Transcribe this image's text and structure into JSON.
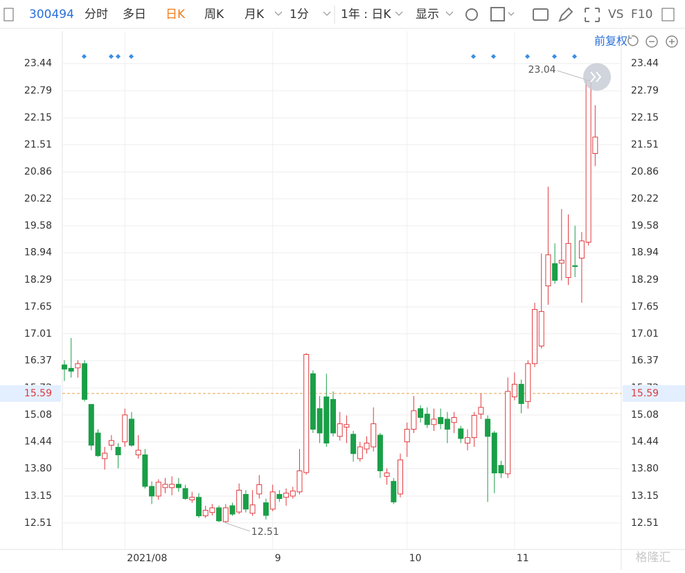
{
  "toolbar": {
    "code": "300494",
    "tabs": [
      "分时",
      "多日",
      "日K",
      "周K",
      "月K",
      "1分",
      "1年 : 日K",
      "显示"
    ],
    "tools": [
      "VS",
      "F10"
    ],
    "adjust": "前复权"
  },
  "watermark": "格隆汇",
  "chart_data": {
    "type": "candlestick",
    "categories": [
      null,
      null,
      null,
      null,
      null,
      null,
      null,
      null,
      null,
      "2021/08",
      null,
      null,
      null,
      null,
      null,
      null,
      null,
      null,
      null,
      null,
      null,
      null,
      null,
      null,
      null,
      null,
      null,
      null,
      null,
      null,
      null,
      "9",
      null,
      null,
      null,
      null,
      null,
      null,
      null,
      null,
      null,
      null,
      null,
      null,
      null,
      null,
      null,
      null,
      null,
      null,
      null,
      "10",
      null,
      null,
      null,
      null,
      null,
      null,
      null,
      null,
      null,
      null,
      null,
      null,
      null,
      null,
      null,
      "11",
      null,
      null,
      null,
      null,
      null,
      null,
      null,
      null,
      null,
      null,
      null,
      null
    ],
    "open": [
      16.27,
      16.19,
      16.2,
      16.3,
      15.33,
      14.65,
      14.04,
      14.36,
      14.31,
      14.44,
      14.98,
      14.13,
      14.13,
      13.38,
      13.15,
      13.35,
      13.35,
      13.43,
      13.33,
      13.06,
      13.12,
      12.68,
      12.76,
      12.87,
      12.54,
      12.92,
      12.77,
      13.19,
      12.74,
      13.2,
      12.99,
      12.84,
      13.19,
      13.12,
      13.15,
      13.25,
      13.71,
      16.06,
      15.23,
      15.51,
      15.45,
      14.57,
      14.79,
      14.62,
      14.04,
      14.27,
      14.32,
      14.6,
      13.62,
      13.5,
      13.2,
      14.44,
      14.74,
      15.23,
      15.1,
      14.85,
      15.02,
      14.98,
      14.9,
      14.75,
      14.41,
      14.54,
      15.1,
      14.98,
      14.65,
      13.88,
      13.68,
      15.51,
      15.81,
      15.4,
      16.3,
      16.72,
      18.15,
      18.68,
      18.69,
      18.35,
      18.63,
      18.81,
      19.19,
      21.3
    ],
    "high": [
      16.38,
      16.91,
      16.38,
      16.38,
      15.33,
      14.74,
      14.32,
      14.6,
      14.41,
      15.23,
      15.15,
      14.6,
      14.27,
      13.5,
      13.55,
      13.58,
      13.62,
      13.58,
      13.42,
      13.25,
      13.22,
      12.92,
      12.96,
      12.92,
      12.96,
      12.99,
      13.45,
      13.29,
      13.29,
      13.65,
      13.09,
      13.42,
      13.29,
      13.33,
      13.37,
      14.27,
      16.55,
      16.14,
      15.53,
      16.06,
      15.64,
      15.15,
      15.07,
      14.7,
      14.44,
      14.57,
      15.26,
      14.65,
      13.81,
      13.58,
      14.16,
      14.9,
      15.53,
      15.31,
      15.26,
      15.23,
      15.23,
      15.15,
      15.15,
      14.82,
      14.74,
      15.15,
      15.59,
      15.07,
      14.7,
      13.99,
      15.97,
      16.09,
      15.92,
      16.38,
      17.75,
      18.92,
      20.51,
      19.16,
      19.98,
      19.85,
      19.58,
      19.43,
      23.04,
      22.45
    ],
    "low": [
      15.89,
      15.97,
      15.97,
      15.4,
      14.24,
      14.08,
      13.78,
      14.24,
      13.81,
      14.32,
      14.32,
      14.04,
      13.33,
      12.96,
      13.06,
      13.22,
      13.17,
      13.25,
      13.06,
      12.99,
      12.63,
      12.63,
      12.69,
      12.53,
      12.51,
      12.68,
      12.72,
      12.76,
      12.68,
      13.09,
      12.59,
      12.79,
      13.01,
      12.92,
      13.09,
      13.19,
      13.66,
      14.65,
      14.41,
      14.32,
      14.57,
      14.47,
      14.41,
      13.97,
      13.97,
      14.16,
      14.21,
      13.58,
      13.42,
      12.96,
      13.12,
      14.08,
      14.65,
      14.9,
      14.77,
      14.7,
      14.74,
      14.41,
      14.65,
      14.41,
      14.24,
      14.32,
      14.98,
      13.01,
      13.22,
      13.58,
      13.58,
      15.43,
      15.12,
      15.23,
      16.22,
      16.66,
      17.7,
      18.2,
      18.28,
      18.17,
      18.36,
      17.75,
      19.11,
      21.0
    ],
    "close": [
      16.17,
      16.12,
      16.3,
      15.45,
      14.36,
      14.11,
      14.17,
      14.47,
      14.13,
      15.08,
      14.36,
      14.24,
      13.38,
      13.15,
      13.48,
      13.43,
      13.43,
      13.35,
      13.09,
      13.12,
      12.68,
      12.81,
      12.87,
      12.56,
      12.87,
      12.72,
      13.29,
      12.84,
      12.94,
      13.42,
      12.69,
      13.25,
      13.09,
      13.22,
      13.27,
      13.75,
      16.52,
      14.74,
      14.65,
      14.41,
      14.65,
      14.87,
      14.85,
      14.16,
      14.32,
      14.41,
      14.87,
      13.75,
      13.7,
      13.01,
      14.01,
      14.74,
      15.18,
      15.02,
      14.85,
      14.98,
      14.87,
      14.74,
      15.02,
      14.52,
      14.54,
      15.07,
      15.26,
      14.57,
      13.7,
      13.7,
      15.64,
      15.81,
      15.35,
      16.3,
      17.59,
      17.54,
      18.89,
      18.28,
      18.76,
      19.16,
      18.61,
      19.22,
      23.04,
      21.69
    ],
    "up_color": "#e0393e",
    "down_color": "#1a9f48",
    "ylim": [
      11.88,
      24.21
    ],
    "yticks": [
      23.44,
      22.79,
      22.15,
      21.51,
      20.86,
      20.22,
      19.58,
      18.94,
      18.29,
      17.65,
      17.01,
      16.37,
      15.72,
      15.08,
      14.44,
      {
        "value": 13.8,
        "label": "13.80"
      },
      13.15,
      12.51
    ],
    "grid": true,
    "crosshair": 15.59,
    "max_index": 78,
    "min_index": 24
  }
}
